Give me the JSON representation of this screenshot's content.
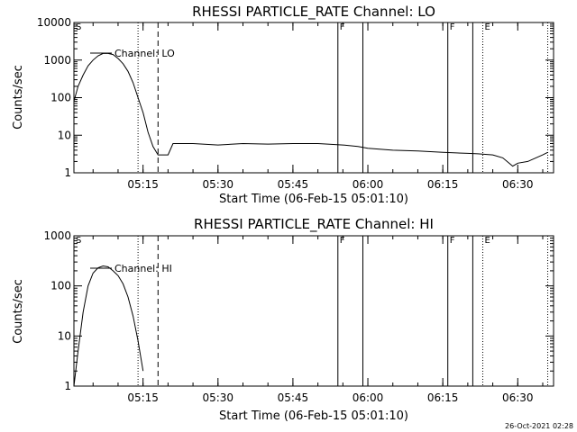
{
  "timestamp": "26-Oct-2021 02:28",
  "chart_data": [
    {
      "type": "line",
      "title": "RHESSI PARTICLE_RATE Channel: LO",
      "xlabel": "Start Time (06-Feb-15 05:01:10)",
      "ylabel": "Counts/sec",
      "y_scale": "log",
      "ylim": [
        1,
        10000
      ],
      "xlim_minutes": [
        0,
        96
      ],
      "x_ticks": [
        "05:15",
        "05:30",
        "05:45",
        "06:00",
        "06:15",
        "06:30"
      ],
      "y_ticks": [
        "1",
        "10",
        "100",
        "1000",
        "10000"
      ],
      "legend": "Channel: LO",
      "markers": [
        {
          "label": "S",
          "x": "05:01:10",
          "style": "solid"
        },
        {
          "label": "",
          "x": "05:14",
          "style": "dotted"
        },
        {
          "label": "",
          "x": "05:18",
          "style": "dashed"
        },
        {
          "label": "F",
          "x": "05:54",
          "style": "solid"
        },
        {
          "label": "",
          "x": "05:59",
          "style": "solid"
        },
        {
          "label": "F",
          "x": "06:16",
          "style": "solid"
        },
        {
          "label": "",
          "x": "06:21",
          "style": "solid"
        },
        {
          "label": "E",
          "x": "06:23",
          "style": "dotted"
        },
        {
          "label": "",
          "x": "06:36",
          "style": "dotted"
        }
      ],
      "series": [
        {
          "x": [
            "05:01:10",
            "05:02",
            "05:03",
            "05:04",
            "05:05",
            "05:06",
            "05:07",
            "05:08",
            "05:09",
            "05:10",
            "05:11",
            "05:12",
            "05:13",
            "05:14",
            "05:15",
            "05:16",
            "05:17",
            "05:18",
            "05:19",
            "05:20",
            "05:21",
            "05:25",
            "05:30",
            "05:35",
            "05:40",
            "05:45",
            "05:50",
            "05:55",
            "05:58",
            "06:00",
            "06:05",
            "06:10",
            "06:15",
            "06:20",
            "06:22",
            "06:25",
            "06:27",
            "06:29",
            "06:30",
            "06:32",
            "06:35",
            "06:36"
          ],
          "y": [
            80,
            200,
            400,
            700,
            1000,
            1300,
            1500,
            1500,
            1400,
            1100,
            800,
            500,
            250,
            100,
            40,
            12,
            5,
            3,
            3,
            3,
            6,
            6,
            5.5,
            6,
            5.8,
            6,
            6,
            5.5,
            5,
            4.5,
            4,
            3.8,
            3.5,
            3.3,
            3.2,
            3,
            2.5,
            1.5,
            1.8,
            2,
            3,
            3.5
          ]
        }
      ]
    },
    {
      "type": "line",
      "title": "RHESSI PARTICLE_RATE Channel: HI",
      "xlabel": "Start Time (06-Feb-15 05:01:10)",
      "ylabel": "Counts/sec",
      "y_scale": "log",
      "ylim": [
        1,
        1000
      ],
      "xlim_minutes": [
        0,
        96
      ],
      "x_ticks": [
        "05:15",
        "05:30",
        "05:45",
        "06:00",
        "06:15",
        "06:30"
      ],
      "y_ticks": [
        "1",
        "10",
        "100",
        "1000"
      ],
      "legend": "Channel: HI",
      "markers": [
        {
          "label": "S",
          "x": "05:01:10",
          "style": "solid"
        },
        {
          "label": "",
          "x": "05:14",
          "style": "dotted"
        },
        {
          "label": "",
          "x": "05:18",
          "style": "dashed"
        },
        {
          "label": "F",
          "x": "05:54",
          "style": "solid"
        },
        {
          "label": "",
          "x": "05:59",
          "style": "solid"
        },
        {
          "label": "F",
          "x": "06:16",
          "style": "solid"
        },
        {
          "label": "",
          "x": "06:21",
          "style": "solid"
        },
        {
          "label": "E",
          "x": "06:23",
          "style": "dotted"
        },
        {
          "label": "",
          "x": "06:36",
          "style": "dotted"
        }
      ],
      "series": [
        {
          "x": [
            "05:01:10",
            "05:02",
            "05:03",
            "05:04",
            "05:05",
            "05:06",
            "05:07",
            "05:08",
            "05:09",
            "05:10",
            "05:11",
            "05:12",
            "05:13",
            "05:14",
            "05:15"
          ],
          "y": [
            1,
            5,
            30,
            100,
            180,
            230,
            250,
            240,
            200,
            160,
            110,
            60,
            25,
            8,
            2
          ]
        }
      ]
    }
  ]
}
